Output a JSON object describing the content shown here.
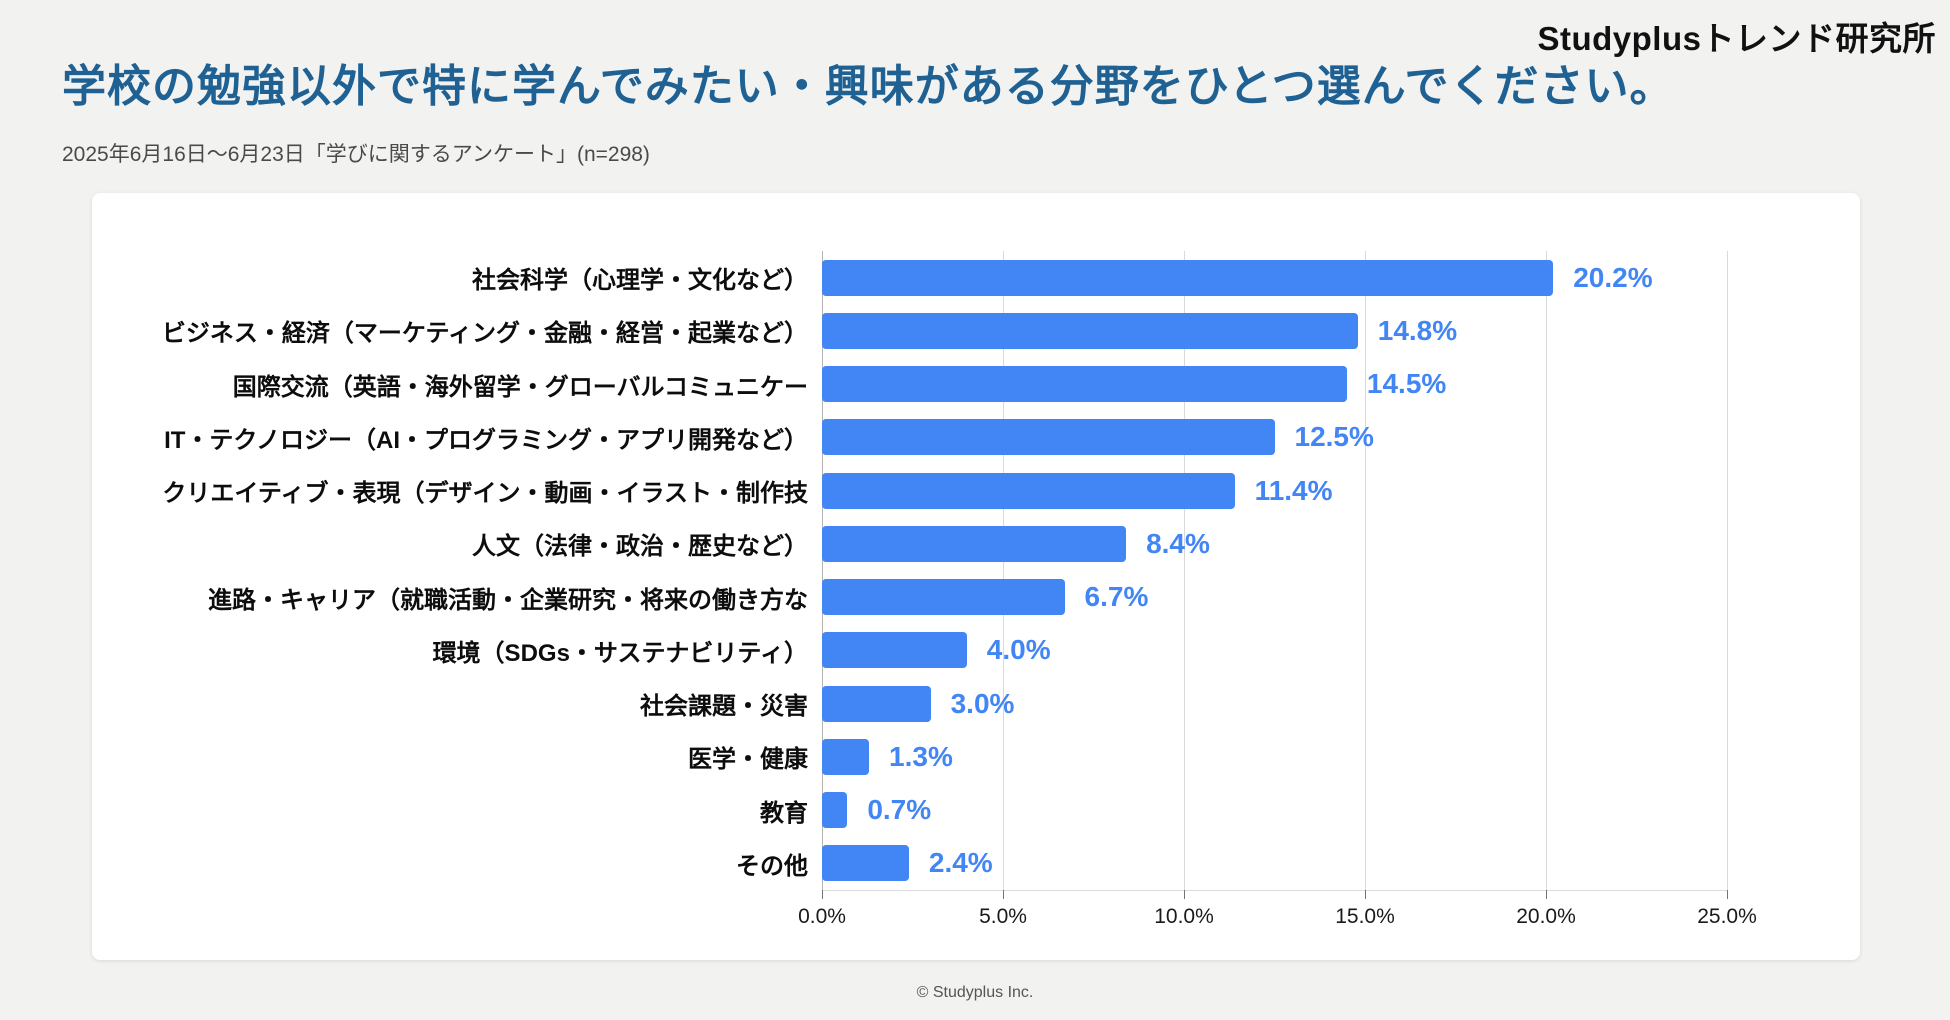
{
  "page": {
    "background": "#f2f2f1",
    "logo": "Studyplusトレンド研究所",
    "title": "学校の勉強以外で特に学んでみたい・興味がある分野をひとつ選んでください。",
    "subtitle": "2025年6月16日～6月23日「学びに関するアンケート」(n=298)",
    "footer": "© Studyplus Inc."
  },
  "colors": {
    "title_text": "#1f6193",
    "bar_fill": "#4285f4",
    "value_label": "#4285f4",
    "gridline": "#d9d9d9",
    "category_label": "#0d0d0d"
  },
  "chart_data": {
    "type": "bar",
    "orientation": "horizontal",
    "title": "",
    "xlabel": "",
    "ylabel": "",
    "xlim": [
      0,
      25
    ],
    "grid": true,
    "categories": [
      "社会科学（心理学・文化など）",
      "ビジネス・経済（マーケティング・金融・経営・起業など）",
      "国際交流（英語・海外留学・グローバルコミュニケー",
      "IT・テクノロジー（AI・プログラミング・アプリ開発など）",
      "クリエイティブ・表現（デザイン・動画・イラスト・制作技",
      "人文（法律・政治・歴史など）",
      "進路・キャリア（就職活動・企業研究・将来の働き方な",
      "環境（SDGs・サステナビリティ）",
      "社会課題・災害",
      "医学・健康",
      "教育",
      "その他"
    ],
    "values": [
      20.2,
      14.8,
      14.5,
      12.5,
      11.4,
      8.4,
      6.7,
      4.0,
      3.0,
      1.3,
      0.7,
      2.4
    ],
    "value_labels": [
      "20.2%",
      "14.8%",
      "14.5%",
      "12.5%",
      "11.4%",
      "8.4%",
      "6.7%",
      "4.0%",
      "3.0%",
      "1.3%",
      "0.7%",
      "2.4%"
    ],
    "x_ticks": [
      "0.0%",
      "5.0%",
      "10.0%",
      "15.0%",
      "20.0%",
      "25.0%"
    ],
    "legend": null,
    "bar_color": "#4285f4"
  }
}
